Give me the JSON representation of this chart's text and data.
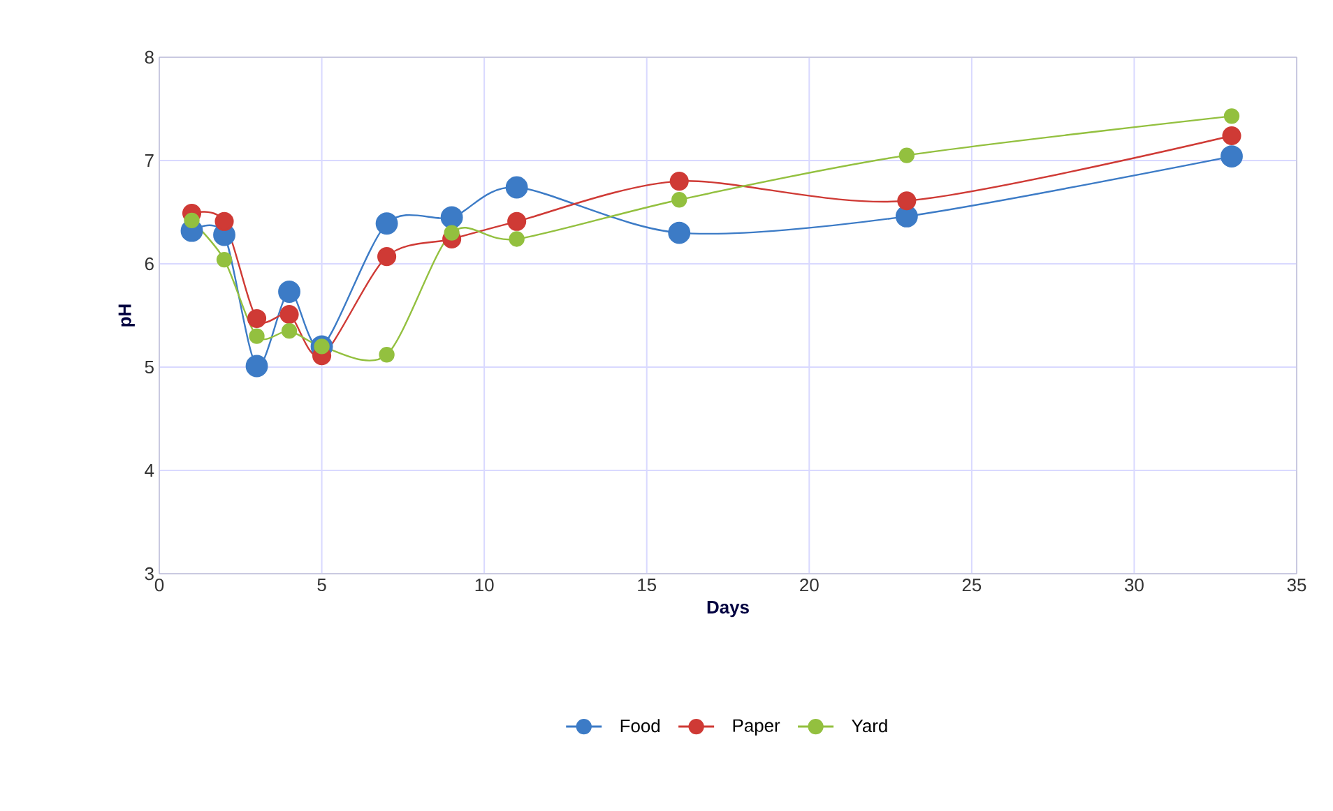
{
  "chart_data": {
    "type": "line",
    "xlabel": "Days",
    "ylabel": "pH",
    "x": [
      1,
      2,
      3,
      4,
      5,
      7,
      9,
      11,
      16,
      23,
      33
    ],
    "series": [
      {
        "name": "Food",
        "color": "#3c7bc6",
        "values": [
          6.32,
          6.28,
          5.01,
          5.73,
          5.2,
          6.39,
          6.45,
          6.74,
          6.3,
          6.46,
          7.04
        ]
      },
      {
        "name": "Paper",
        "color": "#cf3a35",
        "values": [
          6.49,
          6.41,
          5.47,
          5.51,
          5.11,
          6.07,
          6.24,
          6.41,
          6.8,
          6.61,
          7.24
        ]
      },
      {
        "name": "Yard",
        "color": "#93c03f",
        "values": [
          6.42,
          6.04,
          5.3,
          5.35,
          5.2,
          5.12,
          6.3,
          6.24,
          6.62,
          7.05,
          7.43
        ]
      }
    ],
    "xlim": [
      0,
      35
    ],
    "xticks": [
      0,
      5,
      10,
      15,
      20,
      25,
      30,
      35
    ],
    "ylim": [
      3,
      8
    ],
    "yticks": [
      3,
      4,
      5,
      6,
      7,
      8
    ],
    "grid": true,
    "legend": "bottom",
    "marker": "circle",
    "line_style": "solid"
  }
}
